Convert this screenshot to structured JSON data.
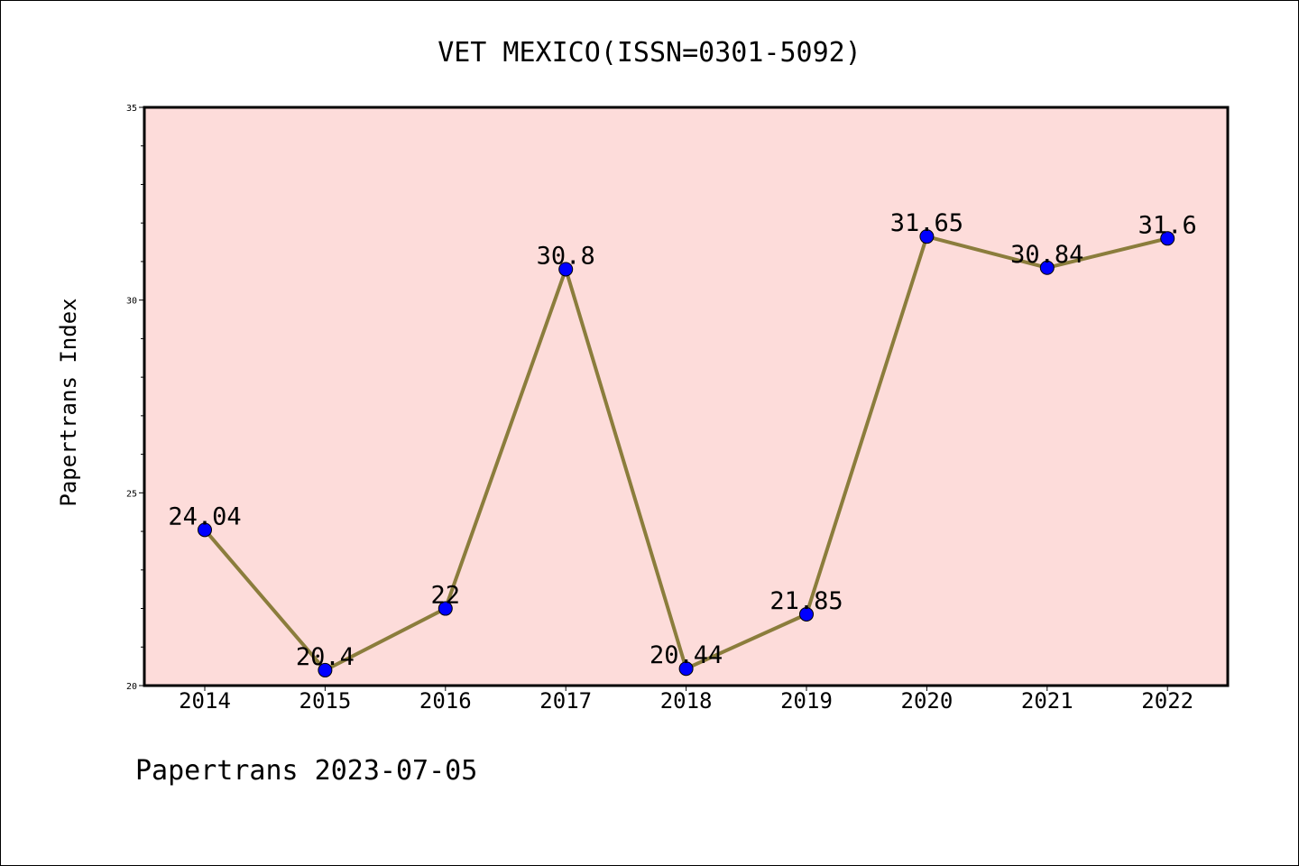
{
  "chart_data": {
    "type": "line",
    "title": "VET MEXICO(ISSN=0301-5092)",
    "xlabel": "",
    "ylabel": "Papertrans Index",
    "categories": [
      "2014",
      "2015",
      "2016",
      "2017",
      "2018",
      "2019",
      "2020",
      "2021",
      "2022"
    ],
    "series": [
      {
        "values": [
          24.04,
          20.4,
          22,
          30.8,
          20.44,
          21.85,
          31.65,
          30.84,
          31.6
        ],
        "labels": [
          "24.04",
          "20.4",
          "22",
          "30.8",
          "20.44",
          "21.85",
          "31.65",
          "30.84",
          "31.6"
        ]
      }
    ],
    "ylim": [
      20,
      35
    ],
    "yticks": [
      "20",
      "25",
      "30",
      "35"
    ],
    "grid": false,
    "colors": {
      "plot_background": "#FDDCDA",
      "line": "#8B7D3C",
      "marker": "#0000FF"
    }
  },
  "footer": "Papertrans 2023-07-05"
}
